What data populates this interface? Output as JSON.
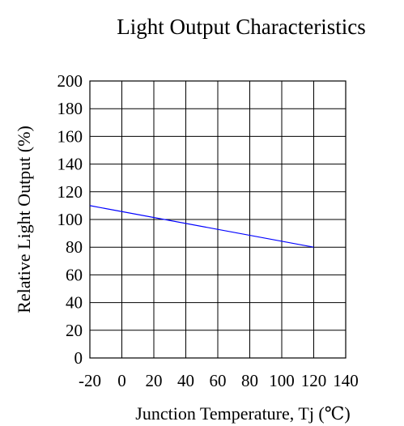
{
  "chart_data": {
    "type": "line",
    "title": "Light Output Characteristics",
    "xlabel": "Junction Temperature, Tj (℃)",
    "ylabel": "Relative Light Output (%)",
    "xlim": [
      -20,
      140
    ],
    "ylim": [
      0,
      200
    ],
    "xticks": [
      "-20",
      "0",
      "20",
      "40",
      "60",
      "80",
      "100",
      "120",
      "140"
    ],
    "yticks": [
      "0",
      "20",
      "40",
      "60",
      "80",
      "100",
      "120",
      "140",
      "160",
      "180",
      "200"
    ],
    "grid": true,
    "series": [
      {
        "x": [
          -20,
          120
        ],
        "y": [
          110,
          80
        ],
        "color": "#0000ff"
      }
    ]
  }
}
